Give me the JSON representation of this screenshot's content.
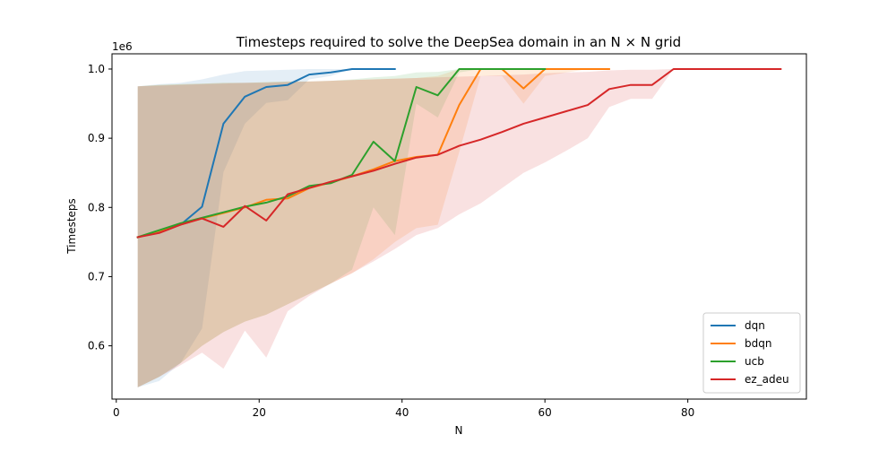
{
  "chart_data": {
    "type": "line",
    "title": "Timesteps required to solve the DeepSea domain in an N × N grid",
    "xlabel": "N",
    "ylabel": "Timesteps",
    "y_offset_label": "1e6",
    "xlim": [
      -0.6,
      96.6
    ],
    "ylim": [
      0.523,
      1.022
    ],
    "xticks": [
      0,
      20,
      40,
      60,
      80
    ],
    "yticks": [
      0.6,
      0.7,
      0.8,
      0.9,
      1.0
    ],
    "ytick_labels": [
      "0.6",
      "0.7",
      "0.8",
      "0.9",
      "1.0"
    ],
    "grid": false,
    "legend_position": "lower-right",
    "series": [
      {
        "name": "dqn",
        "color": "#1f77b4",
        "x": [
          3,
          6,
          9,
          12,
          15,
          18,
          21,
          24,
          27,
          30,
          33,
          36,
          39
        ],
        "y": [
          0.757,
          0.765,
          0.775,
          0.801,
          0.921,
          0.96,
          0.974,
          0.977,
          0.992,
          0.995,
          1.0,
          1.0,
          1.0
        ],
        "lower": [
          0.54,
          0.549,
          0.575,
          0.625,
          0.851,
          0.921,
          0.951,
          0.955,
          0.985,
          0.99,
          1.0,
          1.0,
          1.0
        ],
        "upper": [
          0.975,
          0.978,
          0.98,
          0.985,
          0.992,
          0.997,
          0.998,
          0.999,
          1.0,
          1.0,
          1.0,
          1.0,
          1.0
        ]
      },
      {
        "name": "bdqn",
        "color": "#ff7f0e",
        "x": [
          3,
          6,
          9,
          12,
          15,
          18,
          21,
          24,
          27,
          30,
          33,
          36,
          39,
          42,
          45,
          48,
          51,
          54,
          57,
          60,
          63,
          66,
          69
        ],
        "y": [
          0.757,
          0.766,
          0.775,
          0.784,
          0.792,
          0.8,
          0.811,
          0.813,
          0.828,
          0.836,
          0.845,
          0.855,
          0.867,
          0.873,
          0.876,
          0.948,
          1.0,
          1.0,
          0.972,
          1.0,
          1.0,
          1.0,
          1.0
        ],
        "lower": [
          0.54,
          0.555,
          0.575,
          0.6,
          0.62,
          0.635,
          0.645,
          0.66,
          0.675,
          0.69,
          0.705,
          0.725,
          0.75,
          0.77,
          0.775,
          0.88,
          0.99,
          0.99,
          0.95,
          0.99,
          0.995,
          1.0,
          1.0
        ],
        "upper": [
          0.975,
          0.977,
          0.978,
          0.979,
          0.98,
          0.98,
          0.981,
          0.982,
          0.982,
          0.983,
          0.984,
          0.985,
          0.986,
          0.987,
          0.99,
          1.0,
          1.0,
          1.0,
          1.0,
          1.0,
          1.0,
          1.0,
          1.0
        ]
      },
      {
        "name": "ucb",
        "color": "#2ca02c",
        "x": [
          3,
          6,
          9,
          12,
          15,
          18,
          21,
          24,
          27,
          30,
          33,
          36,
          39,
          42,
          45,
          48,
          51,
          54,
          57,
          60
        ],
        "y": [
          0.757,
          0.767,
          0.777,
          0.785,
          0.793,
          0.801,
          0.807,
          0.816,
          0.831,
          0.835,
          0.847,
          0.895,
          0.867,
          0.974,
          0.962,
          1.0,
          1.0,
          1.0,
          1.0,
          1.0
        ],
        "lower": [
          0.54,
          0.555,
          0.575,
          0.6,
          0.62,
          0.635,
          0.645,
          0.66,
          0.675,
          0.69,
          0.71,
          0.8,
          0.76,
          0.95,
          0.93,
          0.995,
          1.0,
          1.0,
          1.0,
          1.0
        ],
        "upper": [
          0.975,
          0.977,
          0.978,
          0.979,
          0.98,
          0.98,
          0.981,
          0.982,
          0.982,
          0.983,
          0.985,
          0.988,
          0.99,
          0.995,
          0.996,
          1.0,
          1.0,
          1.0,
          1.0,
          1.0
        ]
      },
      {
        "name": "ez_adeu",
        "color": "#d62728",
        "x": [
          3,
          6,
          9,
          12,
          15,
          18,
          21,
          24,
          27,
          30,
          33,
          36,
          39,
          42,
          45,
          48,
          51,
          54,
          57,
          60,
          63,
          66,
          69,
          72,
          75,
          78,
          81,
          84,
          87,
          90,
          93
        ],
        "y": [
          0.757,
          0.763,
          0.775,
          0.784,
          0.772,
          0.802,
          0.781,
          0.819,
          0.828,
          0.837,
          0.845,
          0.853,
          0.863,
          0.872,
          0.876,
          0.889,
          0.898,
          0.909,
          0.921,
          0.93,
          0.939,
          0.948,
          0.971,
          0.977,
          0.977,
          1.0,
          1.0,
          1.0,
          1.0,
          1.0,
          1.0
        ],
        "lower": [
          0.54,
          0.555,
          0.572,
          0.59,
          0.567,
          0.622,
          0.583,
          0.65,
          0.672,
          0.69,
          0.705,
          0.722,
          0.74,
          0.76,
          0.77,
          0.79,
          0.806,
          0.828,
          0.85,
          0.865,
          0.882,
          0.9,
          0.945,
          0.957,
          0.957,
          1.0,
          1.0,
          1.0,
          1.0,
          1.0,
          1.0
        ],
        "upper": [
          0.975,
          0.976,
          0.977,
          0.978,
          0.979,
          0.98,
          0.98,
          0.981,
          0.982,
          0.983,
          0.984,
          0.985,
          0.986,
          0.987,
          0.988,
          0.989,
          0.99,
          0.991,
          0.992,
          0.994,
          0.995,
          0.996,
          0.998,
          0.999,
          0.999,
          1.0,
          1.0,
          1.0,
          1.0,
          1.0,
          1.0
        ]
      }
    ]
  }
}
